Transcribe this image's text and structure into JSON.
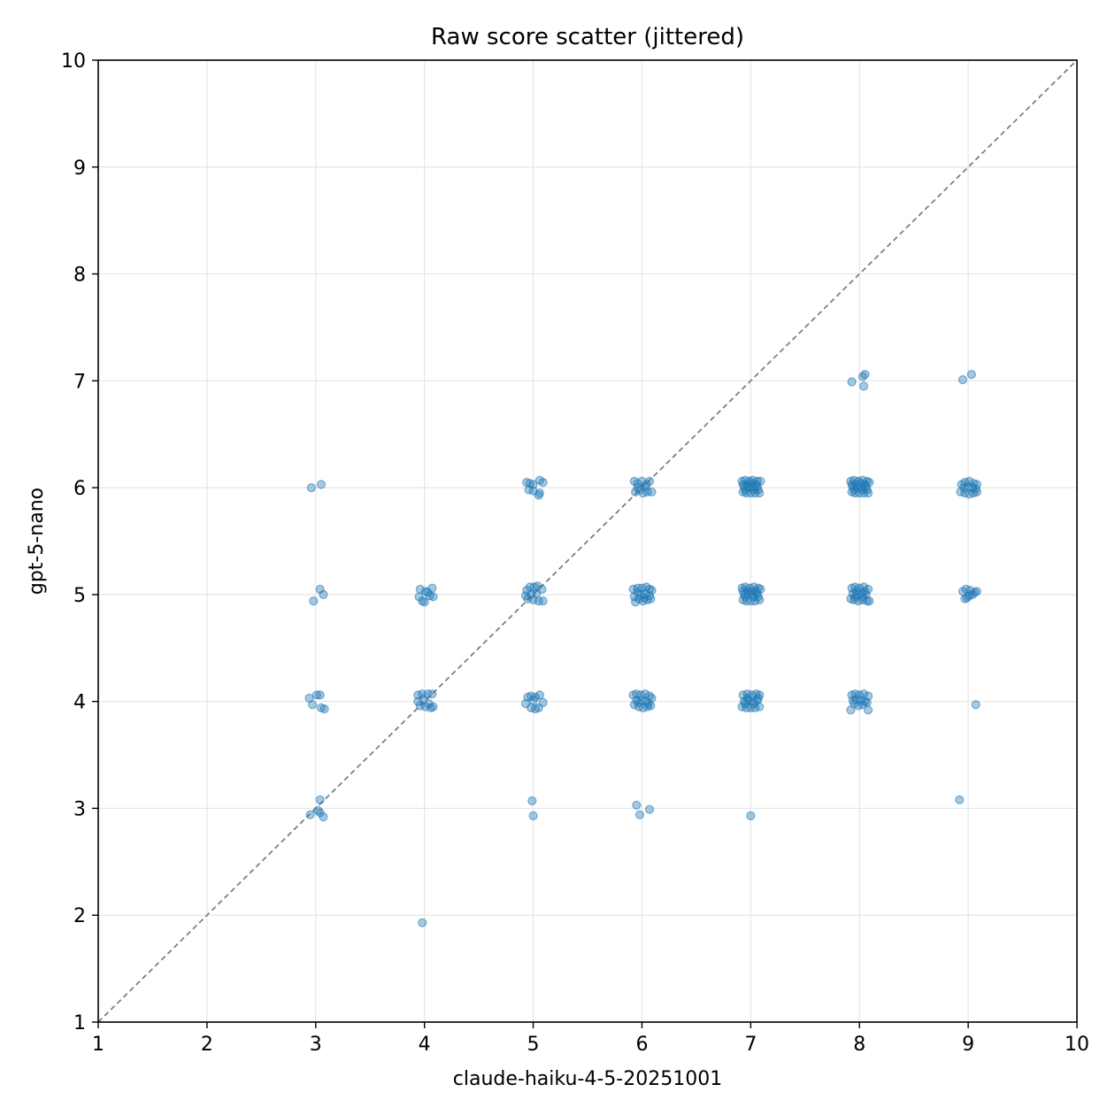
{
  "chart_data": {
    "type": "scatter",
    "title": "Raw score scatter (jittered)",
    "xlabel": "claude-haiku-4-5-20251001",
    "ylabel": "gpt-5-nano",
    "xlim": [
      1,
      10
    ],
    "ylim": [
      1,
      10
    ],
    "xticks": [
      "1",
      "2",
      "3",
      "4",
      "5",
      "6",
      "7",
      "8",
      "9",
      "10"
    ],
    "yticks": [
      "1",
      "2",
      "3",
      "4",
      "5",
      "6",
      "7",
      "8",
      "9",
      "10"
    ],
    "grid": true,
    "reference_line": "y = x (dashed, gray)",
    "point_color": "#1f77b4",
    "points": [
      [
        2.96,
        6.0
      ],
      [
        3.05,
        6.03
      ],
      [
        3.04,
        5.05
      ],
      [
        2.98,
        4.94
      ],
      [
        3.07,
        5.0
      ],
      [
        2.94,
        4.03
      ],
      [
        3.01,
        4.06
      ],
      [
        3.04,
        4.06
      ],
      [
        2.97,
        3.97
      ],
      [
        3.05,
        3.94
      ],
      [
        3.08,
        3.93
      ],
      [
        3.04,
        3.08
      ],
      [
        2.95,
        2.94
      ],
      [
        3.02,
        2.98
      ],
      [
        3.04,
        2.96
      ],
      [
        3.07,
        2.92
      ],
      [
        3.96,
        5.05
      ],
      [
        4.03,
        5.02
      ],
      [
        4.07,
        5.06
      ],
      [
        3.95,
        4.98
      ],
      [
        4.05,
        4.99
      ],
      [
        3.98,
        4.94
      ],
      [
        4.08,
        4.98
      ],
      [
        4.0,
        4.93
      ],
      [
        4.01,
        5.03
      ],
      [
        3.94,
        4.06
      ],
      [
        3.98,
        4.07
      ],
      [
        4.03,
        4.07
      ],
      [
        4.07,
        4.07
      ],
      [
        3.96,
        3.96
      ],
      [
        4.01,
        3.95
      ],
      [
        4.06,
        3.94
      ],
      [
        3.94,
        4.0
      ],
      [
        4.08,
        3.95
      ],
      [
        3.99,
        4.02
      ],
      [
        4.04,
        3.98
      ],
      [
        3.98,
        1.93
      ],
      [
        4.94,
        6.05
      ],
      [
        4.97,
        6.04
      ],
      [
        5.0,
        6.03
      ],
      [
        5.06,
        6.07
      ],
      [
        5.09,
        6.05
      ],
      [
        4.96,
        5.98
      ],
      [
        5.0,
        5.97
      ],
      [
        5.06,
        5.95
      ],
      [
        5.05,
        5.93
      ],
      [
        4.94,
        5.04
      ],
      [
        4.97,
        5.07
      ],
      [
        5.01,
        5.07
      ],
      [
        5.04,
        5.08
      ],
      [
        5.08,
        5.05
      ],
      [
        4.95,
        4.96
      ],
      [
        5.0,
        4.95
      ],
      [
        5.05,
        4.94
      ],
      [
        5.09,
        4.94
      ],
      [
        4.98,
        5.0
      ],
      [
        5.03,
        5.01
      ],
      [
        4.93,
        4.99
      ],
      [
        4.95,
        4.04
      ],
      [
        4.98,
        4.05
      ],
      [
        5.02,
        4.04
      ],
      [
        5.06,
        4.06
      ],
      [
        4.93,
        3.98
      ],
      [
        4.98,
        3.94
      ],
      [
        5.02,
        3.93
      ],
      [
        5.05,
        3.94
      ],
      [
        5.09,
        3.99
      ],
      [
        5.0,
        4.01
      ],
      [
        4.99,
        3.07
      ],
      [
        5.0,
        2.93
      ],
      [
        5.93,
        6.06
      ],
      [
        5.96,
        6.04
      ],
      [
        6.0,
        6.06
      ],
      [
        6.04,
        6.03
      ],
      [
        6.07,
        6.06
      ],
      [
        5.94,
        5.96
      ],
      [
        5.98,
        5.98
      ],
      [
        6.01,
        5.95
      ],
      [
        6.05,
        5.96
      ],
      [
        6.09,
        5.96
      ],
      [
        6.03,
        6.01
      ],
      [
        5.96,
        6.0
      ],
      [
        5.92,
        5.05
      ],
      [
        5.96,
        5.06
      ],
      [
        6.0,
        5.06
      ],
      [
        6.04,
        5.07
      ],
      [
        6.07,
        5.05
      ],
      [
        6.09,
        5.04
      ],
      [
        5.93,
        4.98
      ],
      [
        5.97,
        4.96
      ],
      [
        6.01,
        4.94
      ],
      [
        6.05,
        4.95
      ],
      [
        6.08,
        4.96
      ],
      [
        5.94,
        4.93
      ],
      [
        5.99,
        5.0
      ],
      [
        6.03,
        5.01
      ],
      [
        6.07,
        4.99
      ],
      [
        5.96,
        5.02
      ],
      [
        6.02,
        4.97
      ],
      [
        5.92,
        4.06
      ],
      [
        5.95,
        4.07
      ],
      [
        5.99,
        4.06
      ],
      [
        6.03,
        4.07
      ],
      [
        6.07,
        4.05
      ],
      [
        6.09,
        4.03
      ],
      [
        5.93,
        3.97
      ],
      [
        5.97,
        3.95
      ],
      [
        6.01,
        3.94
      ],
      [
        6.05,
        3.95
      ],
      [
        6.08,
        3.96
      ],
      [
        5.95,
        4.01
      ],
      [
        6.0,
        4.01
      ],
      [
        6.04,
        4.0
      ],
      [
        5.97,
        3.99
      ],
      [
        6.06,
        3.98
      ],
      [
        5.95,
        3.03
      ],
      [
        5.98,
        2.94
      ],
      [
        6.07,
        2.99
      ],
      [
        6.92,
        6.06
      ],
      [
        6.95,
        6.07
      ],
      [
        6.99,
        6.06
      ],
      [
        7.02,
        6.07
      ],
      [
        7.06,
        6.06
      ],
      [
        7.09,
        6.06
      ],
      [
        6.93,
        5.96
      ],
      [
        6.96,
        5.95
      ],
      [
        7.0,
        5.95
      ],
      [
        7.04,
        5.95
      ],
      [
        7.08,
        5.95
      ],
      [
        6.94,
        6.01
      ],
      [
        6.98,
        6.0
      ],
      [
        7.02,
        6.01
      ],
      [
        7.06,
        6.01
      ],
      [
        6.97,
        6.03
      ],
      [
        7.03,
        5.98
      ],
      [
        7.07,
        5.98
      ],
      [
        6.93,
        6.03
      ],
      [
        7.01,
        6.04
      ],
      [
        6.95,
        5.98
      ],
      [
        7.05,
        6.03
      ],
      [
        6.92,
        5.06
      ],
      [
        6.95,
        5.07
      ],
      [
        6.99,
        5.06
      ],
      [
        7.03,
        5.07
      ],
      [
        7.07,
        5.06
      ],
      [
        7.09,
        5.05
      ],
      [
        6.93,
        4.95
      ],
      [
        6.96,
        4.94
      ],
      [
        7.0,
        4.94
      ],
      [
        7.04,
        4.94
      ],
      [
        7.08,
        4.95
      ],
      [
        6.94,
        5.0
      ],
      [
        6.98,
        5.01
      ],
      [
        7.02,
        5.0
      ],
      [
        7.06,
        5.01
      ],
      [
        6.97,
        5.03
      ],
      [
        7.03,
        4.98
      ],
      [
        7.07,
        4.98
      ],
      [
        6.93,
        5.03
      ],
      [
        7.01,
        5.03
      ],
      [
        6.95,
        4.98
      ],
      [
        7.05,
        5.03
      ],
      [
        6.93,
        4.06
      ],
      [
        6.97,
        4.07
      ],
      [
        7.01,
        4.06
      ],
      [
        7.05,
        4.07
      ],
      [
        7.08,
        4.06
      ],
      [
        6.92,
        3.95
      ],
      [
        6.96,
        3.94
      ],
      [
        7.0,
        3.94
      ],
      [
        7.04,
        3.94
      ],
      [
        7.08,
        3.95
      ],
      [
        6.94,
        4.0
      ],
      [
        6.98,
        4.01
      ],
      [
        7.02,
        4.0
      ],
      [
        7.06,
        4.01
      ],
      [
        6.97,
        4.03
      ],
      [
        7.03,
        3.98
      ],
      [
        6.95,
        3.98
      ],
      [
        7.07,
        4.03
      ],
      [
        7.0,
        2.93
      ],
      [
        7.93,
        6.99
      ],
      [
        8.03,
        7.04
      ],
      [
        8.05,
        7.06
      ],
      [
        8.04,
        6.95
      ],
      [
        7.92,
        6.06
      ],
      [
        7.95,
        6.07
      ],
      [
        7.99,
        6.06
      ],
      [
        8.03,
        6.07
      ],
      [
        8.07,
        6.06
      ],
      [
        8.09,
        6.05
      ],
      [
        7.93,
        5.96
      ],
      [
        7.96,
        5.95
      ],
      [
        8.0,
        5.95
      ],
      [
        8.04,
        5.95
      ],
      [
        8.08,
        5.95
      ],
      [
        7.94,
        6.01
      ],
      [
        7.98,
        6.0
      ],
      [
        8.02,
        6.01
      ],
      [
        8.06,
        6.01
      ],
      [
        7.97,
        6.03
      ],
      [
        8.03,
        5.98
      ],
      [
        8.07,
        5.98
      ],
      [
        7.93,
        6.03
      ],
      [
        8.01,
        6.04
      ],
      [
        7.95,
        5.98
      ],
      [
        8.05,
        6.03
      ],
      [
        7.93,
        5.06
      ],
      [
        7.96,
        5.07
      ],
      [
        8.0,
        5.06
      ],
      [
        8.04,
        5.07
      ],
      [
        8.08,
        5.05
      ],
      [
        7.92,
        4.96
      ],
      [
        7.95,
        4.95
      ],
      [
        7.99,
        4.94
      ],
      [
        8.03,
        4.95
      ],
      [
        8.07,
        4.94
      ],
      [
        8.09,
        4.94
      ],
      [
        7.94,
        5.01
      ],
      [
        7.98,
        5.0
      ],
      [
        8.02,
        5.01
      ],
      [
        8.06,
        5.0
      ],
      [
        7.97,
        5.03
      ],
      [
        8.03,
        4.98
      ],
      [
        7.96,
        4.98
      ],
      [
        8.05,
        5.03
      ],
      [
        7.93,
        4.06
      ],
      [
        7.96,
        4.07
      ],
      [
        8.0,
        4.06
      ],
      [
        8.04,
        4.07
      ],
      [
        8.08,
        4.05
      ],
      [
        7.92,
        3.92
      ],
      [
        7.95,
        3.98
      ],
      [
        7.99,
        3.96
      ],
      [
        8.03,
        3.97
      ],
      [
        8.07,
        3.99
      ],
      [
        8.08,
        3.92
      ],
      [
        7.97,
        4.02
      ],
      [
        8.01,
        4.01
      ],
      [
        8.05,
        4.0
      ],
      [
        7.94,
        4.01
      ],
      [
        8.95,
        7.01
      ],
      [
        9.03,
        7.06
      ],
      [
        8.94,
        6.03
      ],
      [
        8.97,
        6.05
      ],
      [
        9.01,
        6.06
      ],
      [
        9.05,
        6.04
      ],
      [
        9.08,
        6.03
      ],
      [
        8.93,
        5.96
      ],
      [
        8.97,
        5.95
      ],
      [
        9.01,
        5.94
      ],
      [
        9.05,
        5.95
      ],
      [
        9.08,
        5.96
      ],
      [
        8.96,
        6.0
      ],
      [
        9.0,
        6.01
      ],
      [
        9.04,
        6.0
      ],
      [
        9.07,
        5.99
      ],
      [
        8.95,
        5.03
      ],
      [
        8.98,
        5.05
      ],
      [
        9.02,
        5.04
      ],
      [
        9.06,
        5.02
      ],
      [
        9.08,
        5.03
      ],
      [
        8.97,
        4.96
      ],
      [
        9.01,
        4.99
      ],
      [
        9.04,
        5.0
      ],
      [
        8.99,
        4.97
      ],
      [
        9.07,
        3.97
      ],
      [
        8.92,
        3.08
      ]
    ]
  }
}
